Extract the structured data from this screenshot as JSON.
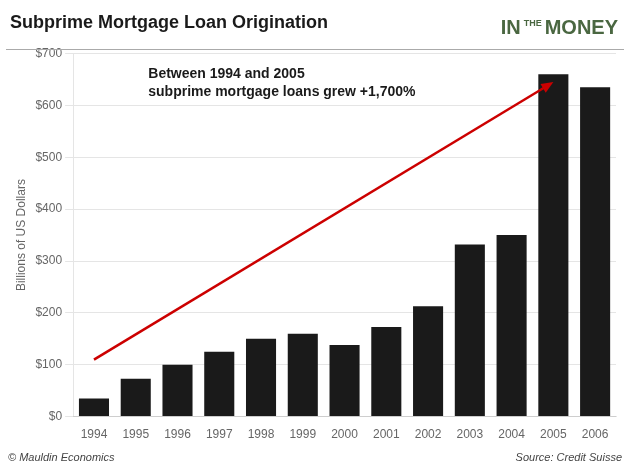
{
  "chart_data": {
    "type": "bar",
    "title": "Subprime Mortgage Loan Origination",
    "ylabel": "Billions of US Dollars",
    "categories": [
      1994,
      1995,
      1996,
      1997,
      1998,
      1999,
      2000,
      2001,
      2002,
      2003,
      2004,
      2005,
      2006
    ],
    "values": [
      35,
      73,
      100,
      125,
      150,
      160,
      138,
      173,
      213,
      332,
      350,
      660,
      635
    ],
    "color": "#1a1a1a",
    "ylim": [
      0,
      700
    ],
    "yticks": [
      {
        "value": 0,
        "label": "$0"
      },
      {
        "value": 100,
        "label": "$100"
      },
      {
        "value": 200,
        "label": "$200"
      },
      {
        "value": 300,
        "label": "$300"
      },
      {
        "value": 400,
        "label": "$400"
      },
      {
        "value": 500,
        "label": "$500"
      },
      {
        "value": 600,
        "label": "$600"
      },
      {
        "value": 700,
        "label": "$700"
      }
    ],
    "grid": true,
    "annotations": [
      "Between 1994 and 2005\nsubprime mortgage loans grew +1,700%"
    ],
    "trend_arrow": {
      "x": [
        1994,
        2005
      ],
      "y": [
        110,
        645
      ],
      "color": "#cc0000"
    },
    "logo": {
      "text": "IN THE MONEY",
      "color": "#4a6741"
    },
    "footnotes": [
      "© Mauldin Economics",
      "Source: Credit Suisse"
    ]
  }
}
